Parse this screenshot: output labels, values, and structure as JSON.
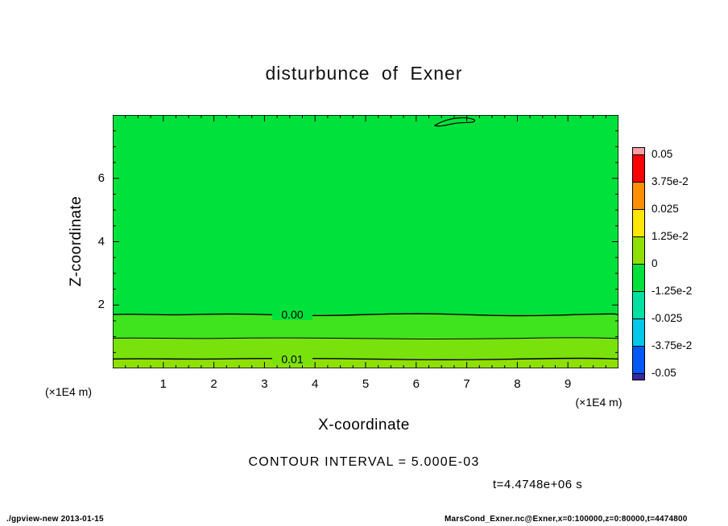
{
  "title": "disturbunce of Exner",
  "plot": {
    "x_axis": {
      "label": "X-coordinate",
      "unit": "(×1E4 m)",
      "ticks": [
        "1",
        "2",
        "3",
        "4",
        "5",
        "6",
        "7",
        "8",
        "9"
      ]
    },
    "y_axis": {
      "label": "Z-coordinate",
      "unit": "(×1E4 m)",
      "ticks": [
        "2",
        "4",
        "6"
      ]
    },
    "contour_labels": {
      "zero": "0.00",
      "one": "0.01"
    }
  },
  "fills": {
    "main": "#00E13C",
    "band1": "#3FE31E",
    "band2": "#79E20C",
    "band3": "#8FE000"
  },
  "colorbar": {
    "labels": [
      "0.05",
      "3.75e-2",
      "0.025",
      "1.25e-2",
      "0",
      "-1.25e-2",
      "-0.025",
      "-3.75e-2",
      "-0.05"
    ],
    "colors": [
      "#FF9FA5",
      "#FB0006",
      "#FF8E00",
      "#FFE600",
      "#8FE000",
      "#00E13C",
      "#00E0A0",
      "#00C8E8",
      "#0058F8",
      "#342A9E"
    ]
  },
  "caption": "CONTOUR INTERVAL = 5.000E-03",
  "time_label": "t=4.4748e+06 s",
  "footer_left": "./gpview-new  2013-01-15",
  "footer_right": "MarsCond_Exner.nc@Exner,x=0:100000,z=0:80000,t=4474800",
  "chart_data": {
    "type": "heatmap",
    "subtype": "filled_contour",
    "title": "disturbunce of Exner",
    "xlabel": "X-coordinate (×1E4 m)",
    "ylabel": "Z-coordinate (×1E4 m)",
    "xlim": [
      0,
      10
    ],
    "ylim": [
      0,
      8
    ],
    "contour_interval": 0.005,
    "contour_interval_text": "CONTOUR INTERVAL = 5.000E-03",
    "time": "t=4.4748e+06 s",
    "colorbar_levels_top_to_bottom": [
      0.05,
      0.0375,
      0.025,
      0.0125,
      0,
      -0.0125,
      -0.025,
      -0.0375,
      -0.05
    ],
    "colorbar_colors_top_to_bottom": [
      "#FF9FA5",
      "#FB0006",
      "#FF8E00",
      "#FFE600",
      "#8FE000",
      "#00E13C",
      "#00E0A0",
      "#00C8E8",
      "#0058F8",
      "#342A9E"
    ],
    "field_bands": [
      {
        "value_range": "about 0 (between -1.25e-2 and 0)",
        "z_range": [
          1.7,
          8.0
        ],
        "color": "#00E13C"
      },
      {
        "value_range": "0 to 5e-3",
        "z_range": [
          0.95,
          1.7
        ],
        "color": "#3FE31E"
      },
      {
        "value_range": "5e-3 to 1e-2",
        "z_range": [
          0.3,
          0.95
        ],
        "color": "#79E20C"
      },
      {
        "value_range": "above 1e-2",
        "z_range": [
          0.0,
          0.3
        ],
        "color": "#8FE000"
      }
    ],
    "contour_lines": [
      {
        "level": 0.0,
        "label": "0.00",
        "z": 1.7
      },
      {
        "level": 0.005,
        "label": "",
        "z": 0.95
      },
      {
        "level": 0.01,
        "label": "0.01",
        "z": 0.3
      }
    ],
    "annotations": [
      {
        "type": "small_closed_contour",
        "level": 0.0,
        "x_range": [
          6.4,
          7.2
        ],
        "z_range": [
          7.6,
          7.95
        ]
      }
    ],
    "legend_position": "right-colorbar",
    "grid": false
  }
}
